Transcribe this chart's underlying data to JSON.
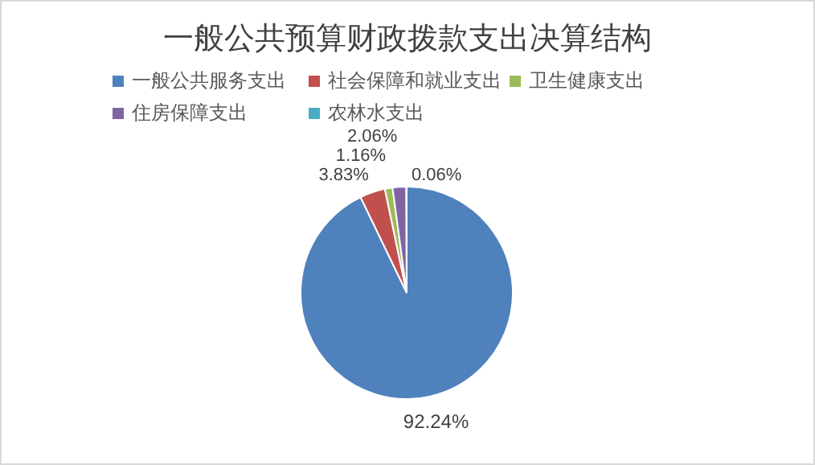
{
  "chart_data": {
    "type": "pie",
    "title": "一般公共预算财政拨款支出决算结构",
    "categories": [
      "一般公共服务支出",
      "社会保障和就业支出",
      "卫生健康支出",
      "住房保障支出",
      "农林水支出"
    ],
    "values": [
      92.24,
      3.83,
      1.16,
      2.06,
      0.06
    ],
    "colors": [
      "#4f81bd",
      "#c0504d",
      "#9bbb59",
      "#8064a2",
      "#4bacc6"
    ],
    "value_labels": [
      "92.24%",
      "3.83%",
      "1.16%",
      "2.06%",
      "0.06%"
    ],
    "legend": "top"
  }
}
